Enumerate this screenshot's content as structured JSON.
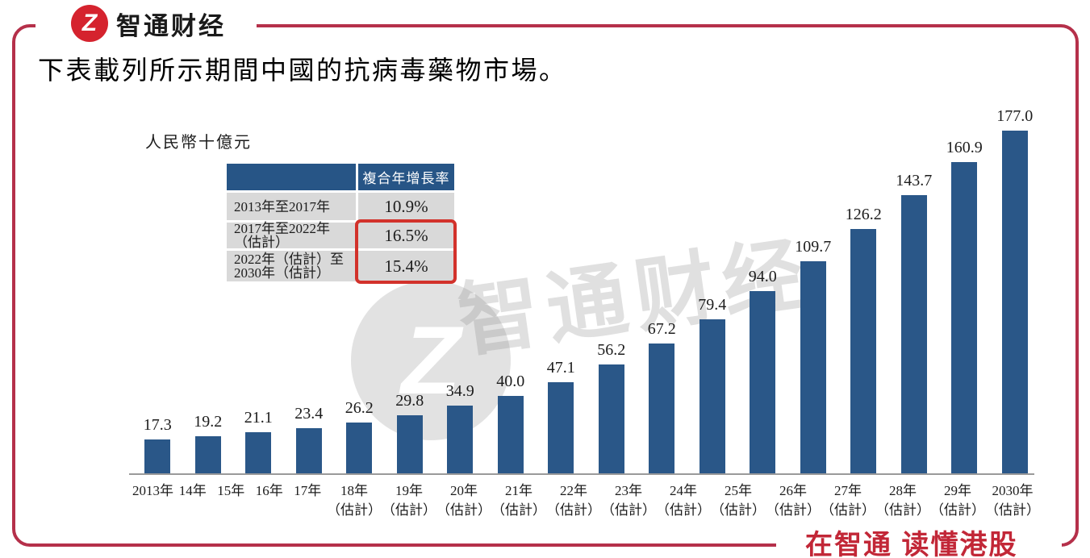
{
  "brand": {
    "logo_glyph": "Z",
    "logo_text": "智通财经"
  },
  "title": "下表載列所示期間中國的抗病毒藥物市場。",
  "unit_label": "人民幣十億元",
  "watermark": {
    "glyph": "Z",
    "text": "智通财经"
  },
  "cagr_table": {
    "header": "複合年增長率",
    "rows": [
      {
        "period_lines": [
          "2013年至2017年"
        ],
        "value": "10.9%",
        "highlighted": false
      },
      {
        "period_lines": [
          "2017年至2022年（估計）"
        ],
        "value": "16.5%",
        "highlighted": true
      },
      {
        "period_lines": [
          "2022年（估計）至",
          "2030年（估計）"
        ],
        "value": "15.4%",
        "highlighted": true
      }
    ]
  },
  "chart_data": {
    "type": "bar",
    "title": "下表載列所示期間中國的抗病毒藥物市場。",
    "ylabel": "人民幣十億元",
    "xlabel": "",
    "ylim": [
      0,
      185
    ],
    "grid": false,
    "legend": "none",
    "bar_color": "#2a5788",
    "categories": [
      "2013年",
      "14年",
      "15年",
      "16年",
      "17年",
      "18年",
      "19年",
      "20年",
      "21年",
      "22年",
      "23年",
      "24年",
      "25年",
      "26年",
      "27年",
      "28年",
      "29年",
      "2030年"
    ],
    "estimate_suffix": "（估計）",
    "estimate_from_index": 5,
    "values": [
      17.3,
      19.2,
      21.1,
      23.4,
      26.2,
      29.8,
      34.9,
      40.0,
      47.1,
      56.2,
      67.2,
      79.4,
      94.0,
      109.7,
      126.2,
      143.7,
      160.9,
      177.0
    ]
  },
  "footer": {
    "slogan": "在智通 读懂港股"
  },
  "colors": {
    "frame_red": "#b5304a",
    "logo_red": "#d5232e",
    "footer_red": "#c22737",
    "bar_blue": "#2a5788",
    "table_header_blue": "#275586",
    "table_row_gray": "#d9d9d9",
    "highlight_red": "#d2322b"
  }
}
